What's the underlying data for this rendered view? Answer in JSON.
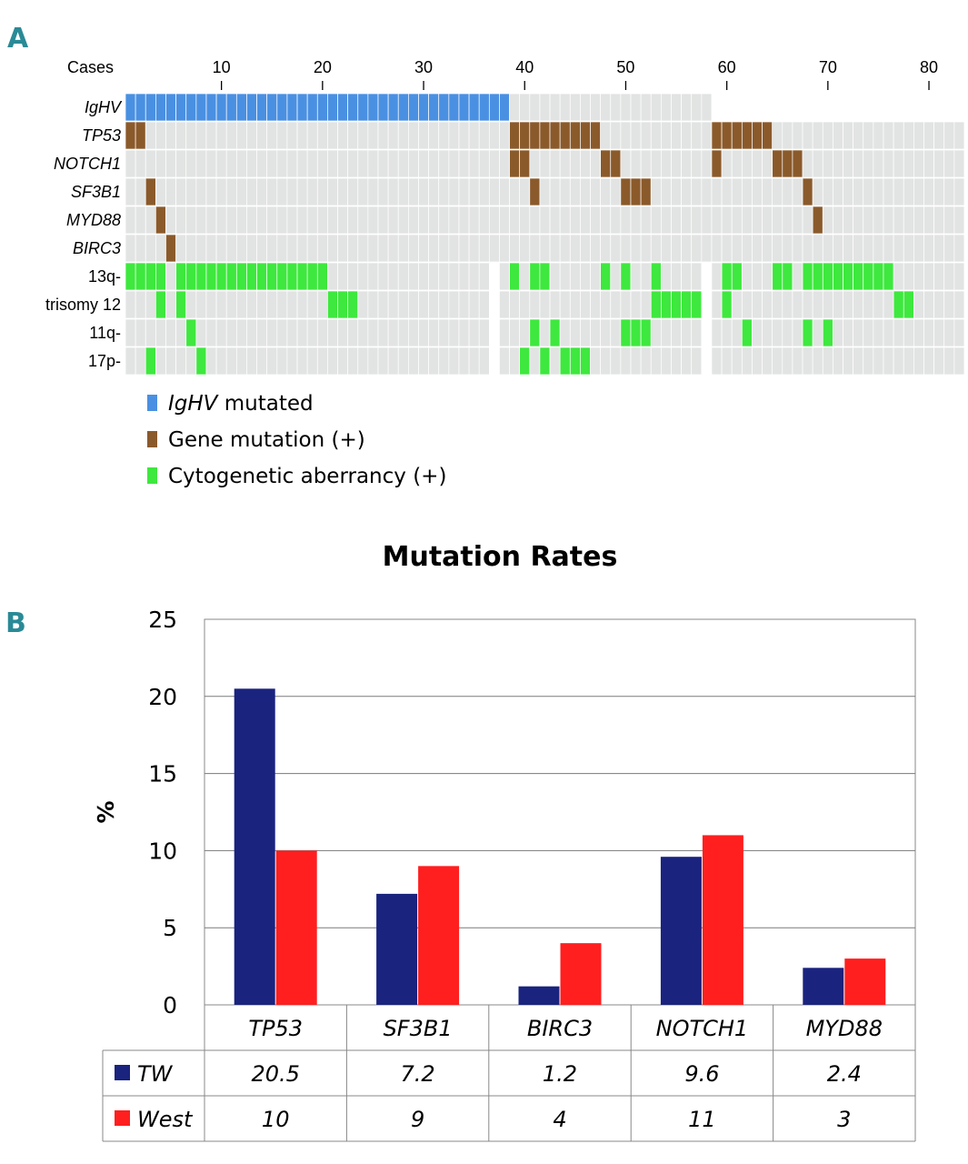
{
  "panels": {
    "a_label": "A",
    "b_label": "B"
  },
  "chart_data": [
    {
      "type": "heatmap",
      "title": "",
      "xlabel": "Cases",
      "x_ticks": [
        "10",
        "20",
        "30",
        "40",
        "50",
        "60",
        "70",
        "80"
      ],
      "x_tick_values": [
        10,
        20,
        30,
        40,
        50,
        60,
        70,
        80
      ],
      "n_cases": 83,
      "break_columns": [
        37,
        58
      ],
      "rows": [
        {
          "label": "IgHV",
          "italic": true,
          "type": "ighv",
          "positive": [
            [
              1,
              38
            ]
          ]
        },
        {
          "label": "TP53",
          "italic": true,
          "type": "gene",
          "positive": [
            [
              1,
              2
            ],
            [
              39,
              47
            ],
            [
              59,
              64
            ]
          ]
        },
        {
          "label": "NOTCH1",
          "italic": true,
          "type": "gene",
          "positive": [
            [
              39,
              40
            ],
            [
              48,
              49
            ],
            [
              59,
              59
            ],
            [
              65,
              67
            ]
          ]
        },
        {
          "label": "SF3B1",
          "italic": true,
          "type": "gene",
          "positive": [
            [
              3,
              3
            ],
            [
              41,
              41
            ],
            [
              50,
              52
            ],
            [
              68,
              68
            ]
          ]
        },
        {
          "label": "MYD88",
          "italic": true,
          "type": "gene",
          "positive": [
            [
              4,
              4
            ],
            [
              69,
              69
            ]
          ]
        },
        {
          "label": "BIRC3",
          "italic": true,
          "type": "gene",
          "positive": [
            [
              5,
              5
            ]
          ]
        },
        {
          "label": "13q-",
          "italic": false,
          "type": "cyto",
          "positive": [
            [
              1,
              4
            ],
            [
              6,
              20
            ],
            [
              39,
              39
            ],
            [
              41,
              42
            ],
            [
              48,
              48
            ],
            [
              50,
              50
            ],
            [
              53,
              53
            ],
            [
              60,
              61
            ],
            [
              65,
              66
            ],
            [
              68,
              76
            ]
          ]
        },
        {
          "label": "trisomy 12",
          "italic": false,
          "type": "cyto",
          "positive": [
            [
              4,
              4
            ],
            [
              6,
              6
            ],
            [
              21,
              23
            ],
            [
              53,
              57
            ],
            [
              60,
              60
            ],
            [
              77,
              78
            ]
          ]
        },
        {
          "label": "11q-",
          "italic": false,
          "type": "cyto",
          "positive": [
            [
              7,
              7
            ],
            [
              41,
              41
            ],
            [
              43,
              43
            ],
            [
              50,
              52
            ],
            [
              62,
              62
            ],
            [
              68,
              68
            ],
            [
              70,
              70
            ]
          ]
        },
        {
          "label": "17p-",
          "italic": false,
          "type": "cyto",
          "positive": [
            [
              3,
              3
            ],
            [
              8,
              8
            ],
            [
              40,
              40
            ],
            [
              42,
              42
            ],
            [
              44,
              46
            ]
          ]
        }
      ],
      "legend": [
        {
          "italic_part": "IgHV",
          "text": " mutated",
          "color": "#4a90e2"
        },
        {
          "italic_part": "",
          "text": "Gene mutation (+)",
          "color": "#8b5a2b"
        },
        {
          "italic_part": "",
          "text": "Cytogenetic aberrancy (+)",
          "color": "#3ee83e"
        }
      ],
      "colors": {
        "ighv": "#4a90e2",
        "gene": "#8b5a2b",
        "cyto": "#3ee83e",
        "empty": "#e2e4e3"
      }
    },
    {
      "type": "bar",
      "title": "Mutation Rates",
      "xlabel": "",
      "ylabel": "%",
      "ylim": [
        0,
        25
      ],
      "yticks": [
        "0",
        "5",
        "10",
        "15",
        "20",
        "25"
      ],
      "ytick_values": [
        0,
        5,
        10,
        15,
        20,
        25
      ],
      "categories": [
        "TP53",
        "SF3B1",
        "BIRC3",
        "NOTCH1",
        "MYD88"
      ],
      "series": [
        {
          "name": "TW",
          "color": "#1a237e",
          "values": [
            20.5,
            7.2,
            1.2,
            9.6,
            2.4
          ],
          "labels": [
            "20.5",
            "7.2",
            "1.2",
            "9.6",
            "2.4"
          ]
        },
        {
          "name": "West",
          "color": "#ff1f1f",
          "values": [
            10,
            9,
            4,
            11,
            3
          ],
          "labels": [
            "10",
            "9",
            "4",
            "11",
            "3"
          ]
        }
      ]
    }
  ]
}
